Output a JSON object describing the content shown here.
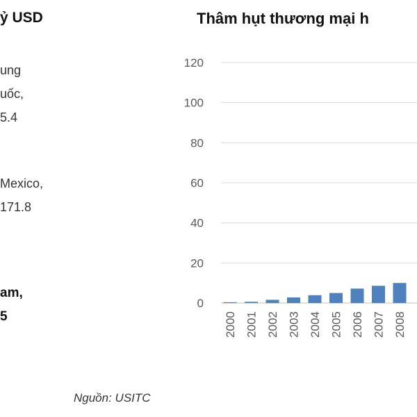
{
  "left_panel": {
    "title": "ỷ USD",
    "notes": [
      {
        "lines": [
          "ung",
          "uốc,",
          "5.4"
        ],
        "bold": false
      },
      {
        "lines": [
          "Mexico,",
          "171.8"
        ],
        "bold": false
      },
      {
        "lines": [
          "am,",
          "5"
        ],
        "bold": true
      }
    ]
  },
  "source": "Nguồn: USITC",
  "colors": {
    "bar": "#4e81bd",
    "grid": "#d9d9d9",
    "axis_text": "#595959"
  },
  "chart_data": {
    "type": "bar",
    "title": "Thâm hụt thương mại h",
    "xlabel": "",
    "ylabel": "",
    "ylim": [
      0,
      120
    ],
    "yticks": [
      0,
      20,
      40,
      60,
      80,
      100,
      120
    ],
    "grid": true,
    "categories": [
      "2000",
      "2001",
      "2002",
      "2003",
      "2004",
      "2005",
      "2006",
      "2007",
      "2008"
    ],
    "values": [
      0.4,
      0.6,
      1.6,
      2.8,
      3.9,
      5.0,
      7.2,
      8.6,
      10.0
    ]
  }
}
